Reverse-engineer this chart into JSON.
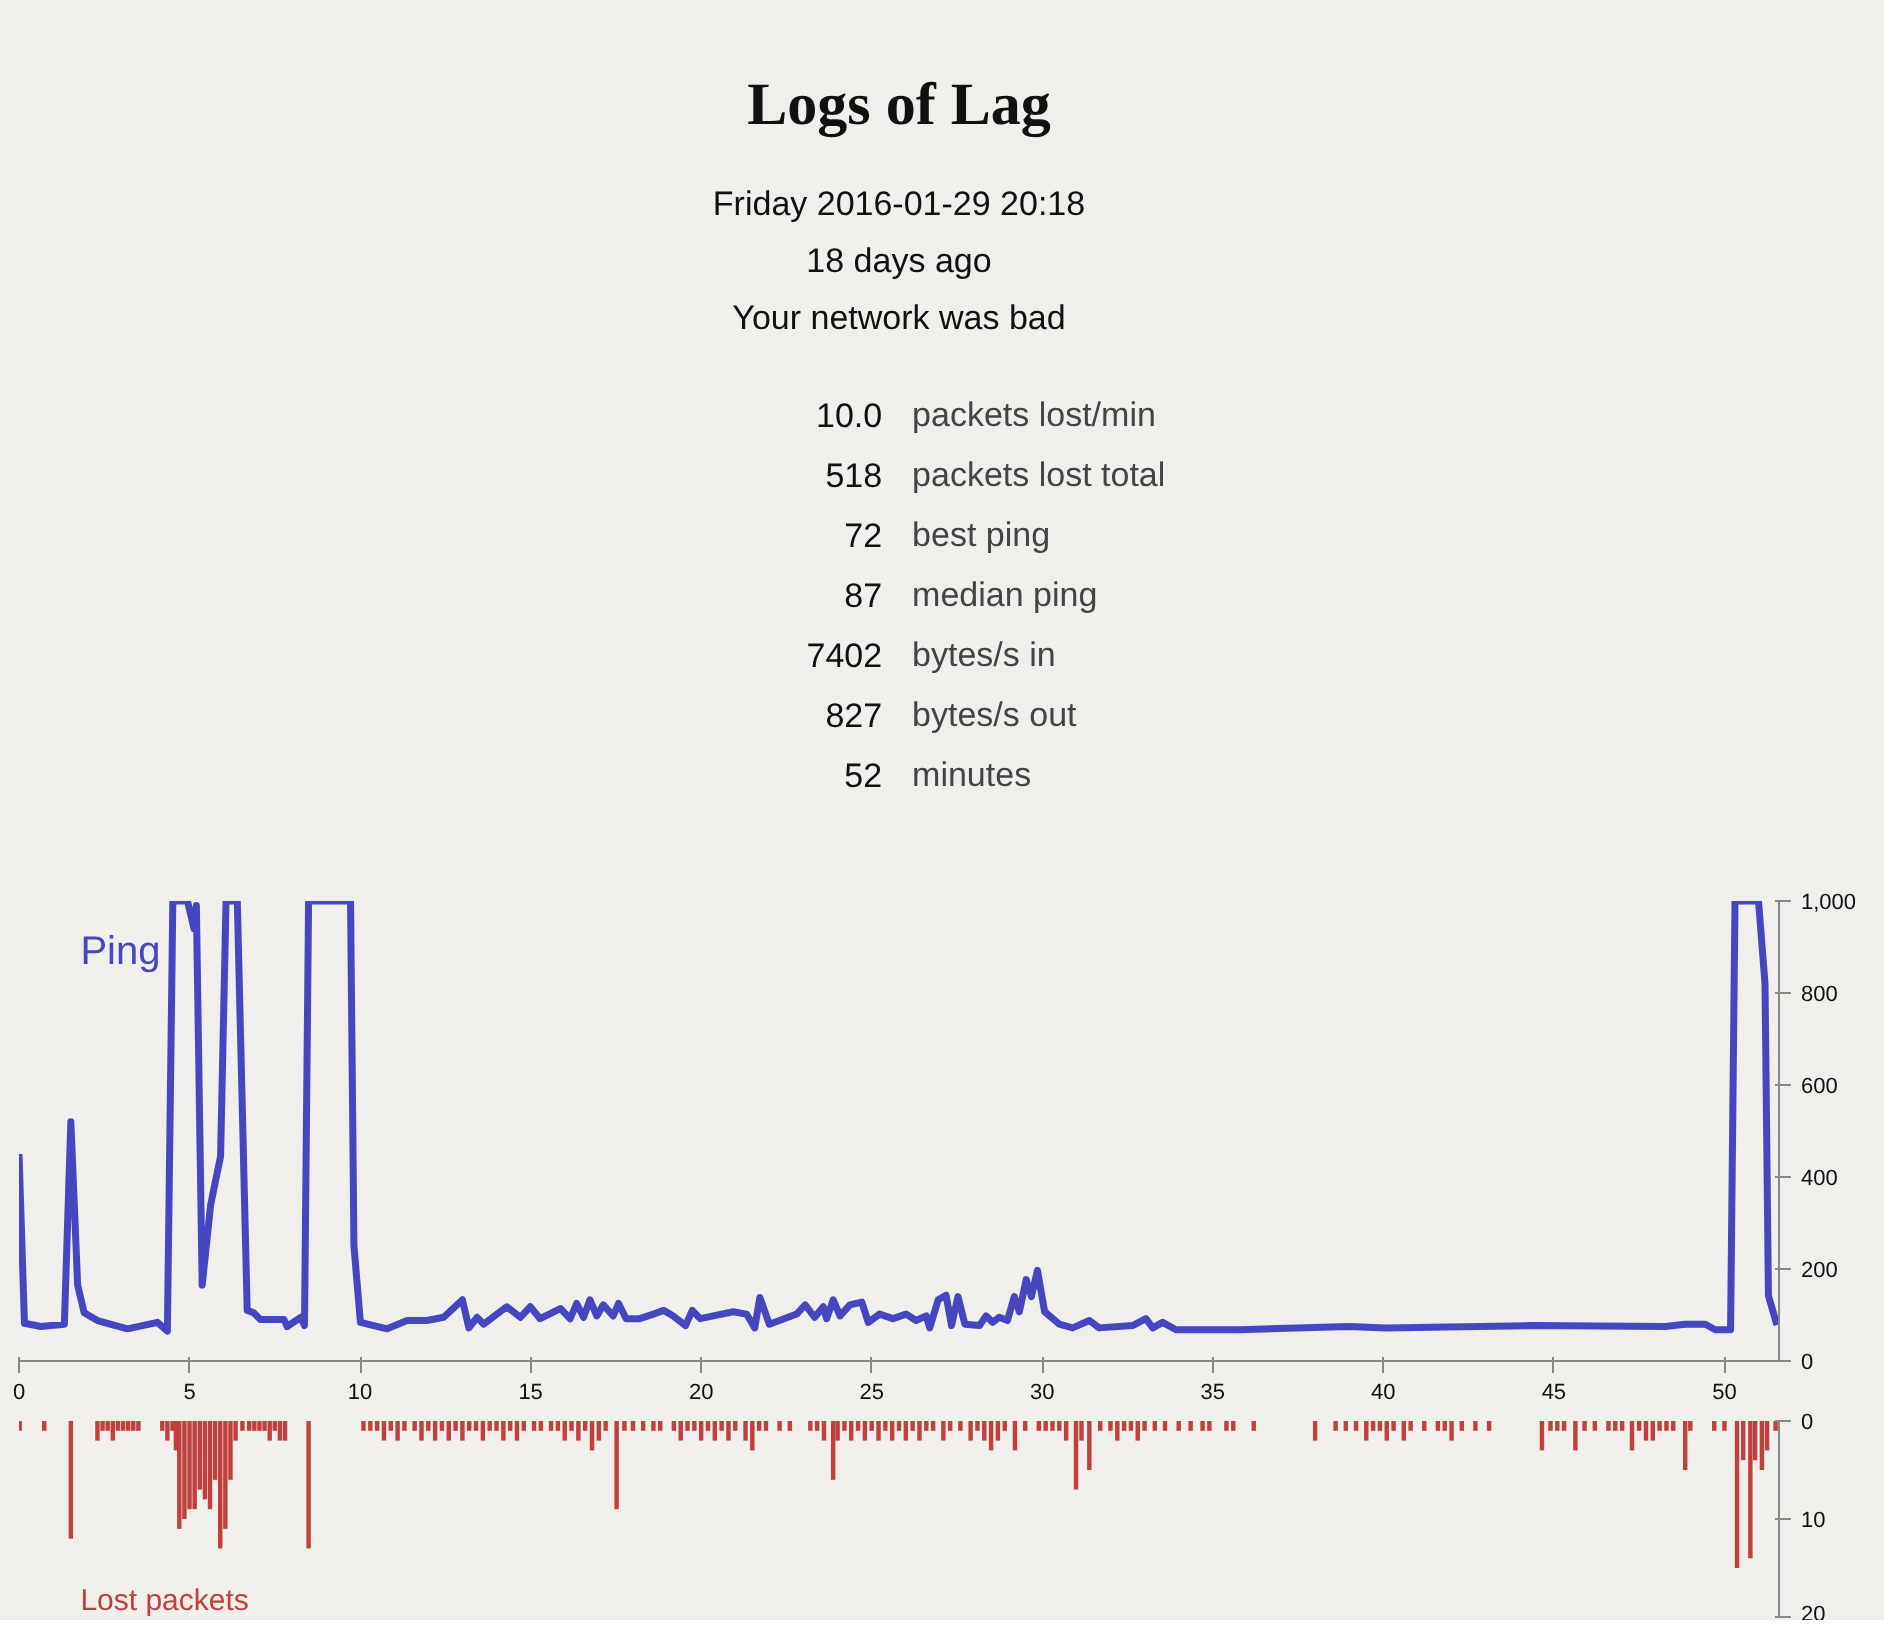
{
  "chart_data": [
    {
      "type": "other",
      "title": "Logs of Lag",
      "subtitle": "Friday 2016-01-29 20:18\n18 days ago\nYour network was bad",
      "annotations": [
        "10.0 packets lost/min",
        "518 packets lost total",
        "72 best ping",
        "87 median ping",
        "7402 bytes/s in",
        "827 bytes/s out",
        "52 minutes"
      ]
    },
    {
      "type": "line",
      "x": [
        0,
        0.16,
        0.64,
        1.33,
        1.52,
        1.72,
        1.91,
        2.3,
        3.18,
        4.06,
        4.35,
        4.51,
        4.94,
        5.13,
        5.2,
        5.37,
        5.62,
        5.91,
        6.07,
        6.4,
        6.69,
        6.88,
        7.08,
        7.77,
        7.86,
        8.26,
        8.37,
        8.49,
        9.72,
        9.82,
        10.01,
        10.79,
        11.38,
        11.96,
        12.45,
        13.0,
        13.19,
        13.43,
        13.62,
        14.3,
        14.7,
        14.99,
        15.28,
        15.87,
        16.16,
        16.35,
        16.55,
        16.74,
        16.94,
        17.13,
        17.42,
        17.58,
        17.8,
        18.2,
        18.6,
        18.9,
        19.18,
        19.54,
        19.74,
        19.97,
        20.36,
        20.94,
        21.33,
        21.57,
        21.72,
        22.0,
        22.8,
        23.05,
        23.33,
        23.58,
        23.68,
        23.87,
        24.07,
        24.36,
        24.71,
        24.9,
        25.23,
        25.62,
        26.01,
        26.3,
        26.6,
        26.7,
        26.95,
        27.18,
        27.34,
        27.53,
        27.73,
        28.16,
        28.35,
        28.55,
        28.74,
        28.98,
        29.18,
        29.33,
        29.53,
        29.68,
        29.86,
        30.07,
        30.5,
        30.89,
        31.38,
        31.67,
        32.65,
        33.04,
        33.24,
        33.53,
        33.92,
        35.77,
        38.99,
        40.07,
        44.36,
        48.26,
        48.85,
        49.44,
        49.73,
        50.18,
        50.31,
        51.0,
        51.19,
        51.29,
        51.54
      ],
      "series": [
        {
          "name": "Ping",
          "color": "#4646c0",
          "values": [
            450,
            82,
            75,
            80,
            520,
            165,
            105,
            88,
            70,
            84,
            65,
            1000,
            1000,
            940,
            990,
            165,
            340,
            445,
            1000,
            1000,
            110,
            105,
            90,
            90,
            75,
            95,
            77,
            1000,
            1000,
            250,
            84,
            70,
            88,
            88,
            95,
            133,
            72,
            95,
            80,
            118,
            95,
            118,
            92,
            114,
            92,
            125,
            95,
            133,
            98,
            122,
            98,
            125,
            92,
            92,
            102,
            110,
            98,
            77,
            110,
            92,
            98,
            107,
            102,
            72,
            138,
            80,
            102,
            122,
            95,
            118,
            92,
            133,
            98,
            122,
            128,
            84,
            102,
            92,
            102,
            88,
            98,
            72,
            133,
            143,
            77,
            140,
            80,
            77,
            98,
            84,
            95,
            88,
            140,
            107,
            177,
            140,
            197,
            107,
            80,
            72,
            88,
            72,
            77,
            92,
            72,
            84,
            68,
            68,
            75,
            72,
            77,
            75,
            80,
            80,
            68,
            68,
            1000,
            1000,
            820,
            142,
            78
          ]
        }
      ],
      "xlim": [
        0,
        51.6
      ],
      "xticks": [
        0,
        5,
        10,
        15,
        20,
        25,
        30,
        35,
        40,
        45,
        50
      ],
      "ylim": [
        0,
        1000
      ],
      "yticks": [
        0,
        200,
        400,
        600,
        800,
        {
          "value": 1000,
          "label": "1,000"
        }
      ],
      "grid": false,
      "legend": false,
      "marker": "none",
      "line_style": "solid"
    },
    {
      "type": "bar",
      "x": [
        0.02,
        0.74,
        1.52,
        2.3,
        2.45,
        2.6,
        2.75,
        2.9,
        3.05,
        3.2,
        3.35,
        3.5,
        4.2,
        4.35,
        4.5,
        4.6,
        4.7,
        4.85,
        5.0,
        5.15,
        5.3,
        5.45,
        5.6,
        5.75,
        5.9,
        6.05,
        6.2,
        6.35,
        6.55,
        6.75,
        6.9,
        7.05,
        7.2,
        7.35,
        7.5,
        7.65,
        7.8,
        8.49,
        10.1,
        10.3,
        10.5,
        10.7,
        10.9,
        11.1,
        11.3,
        11.6,
        11.8,
        12.0,
        12.2,
        12.4,
        12.6,
        12.8,
        13.0,
        13.2,
        13.4,
        13.6,
        13.8,
        14.0,
        14.2,
        14.4,
        14.6,
        14.8,
        15.1,
        15.3,
        15.6,
        15.8,
        16.0,
        16.2,
        16.4,
        16.6,
        16.8,
        17.0,
        17.2,
        17.52,
        17.75,
        18.0,
        18.3,
        18.6,
        18.8,
        19.2,
        19.4,
        19.6,
        19.8,
        20.0,
        20.2,
        20.4,
        20.6,
        20.8,
        21.0,
        21.3,
        21.5,
        21.7,
        21.9,
        22.3,
        22.6,
        23.2,
        23.4,
        23.6,
        23.87,
        24.0,
        24.2,
        24.4,
        24.6,
        24.8,
        25.0,
        25.2,
        25.4,
        25.6,
        25.8,
        26.0,
        26.2,
        26.4,
        26.6,
        26.8,
        27.1,
        27.3,
        27.6,
        27.9,
        28.1,
        28.3,
        28.5,
        28.7,
        28.9,
        29.2,
        29.5,
        29.9,
        30.1,
        30.3,
        30.5,
        30.7,
        30.99,
        31.15,
        31.38,
        31.7,
        32.0,
        32.2,
        32.4,
        32.6,
        32.8,
        33.0,
        33.3,
        33.6,
        34.0,
        34.35,
        34.7,
        34.9,
        35.4,
        35.6,
        36.2,
        38.0,
        38.6,
        38.9,
        39.2,
        39.5,
        39.7,
        39.9,
        40.1,
        40.3,
        40.6,
        40.8,
        41.2,
        41.6,
        41.8,
        42.0,
        42.3,
        42.7,
        43.1,
        44.65,
        44.9,
        45.1,
        45.3,
        45.63,
        45.9,
        46.2,
        46.6,
        46.8,
        47.0,
        47.29,
        47.5,
        47.7,
        47.9,
        48.1,
        48.3,
        48.5,
        48.85,
        49.0,
        49.7,
        50.0,
        50.37,
        50.55,
        50.76,
        50.9,
        51.1,
        51.25,
        51.5
      ],
      "series": [
        {
          "name": "Lost packets",
          "color": "#c0403e",
          "values": [
            1,
            1,
            12,
            2,
            1,
            1,
            2,
            1,
            1,
            1,
            1,
            1,
            1,
            2,
            1,
            3,
            11,
            10,
            9,
            9,
            7,
            8,
            9,
            6,
            13,
            11,
            6,
            2,
            1,
            1,
            1,
            1,
            1,
            2,
            1,
            2,
            2,
            13,
            1,
            1,
            1,
            2,
            1,
            2,
            1,
            1,
            2,
            1,
            2,
            1,
            2,
            1,
            2,
            1,
            1,
            2,
            1,
            1,
            2,
            1,
            2,
            1,
            1,
            1,
            1,
            1,
            2,
            1,
            2,
            1,
            3,
            2,
            1,
            9,
            1,
            1,
            1,
            1,
            1,
            1,
            2,
            1,
            1,
            2,
            1,
            2,
            1,
            2,
            1,
            2,
            3,
            1,
            1,
            1,
            1,
            1,
            1,
            2,
            6,
            2,
            1,
            2,
            1,
            2,
            1,
            2,
            1,
            2,
            1,
            2,
            1,
            2,
            1,
            1,
            2,
            1,
            1,
            2,
            1,
            2,
            3,
            2,
            1,
            3,
            1,
            1,
            1,
            1,
            1,
            2,
            7,
            2,
            5,
            1,
            1,
            2,
            1,
            1,
            2,
            1,
            1,
            1,
            1,
            1,
            1,
            1,
            1,
            1,
            1,
            2,
            1,
            1,
            1,
            2,
            1,
            1,
            2,
            1,
            2,
            1,
            1,
            1,
            1,
            2,
            1,
            1,
            1,
            3,
            1,
            1,
            1,
            3,
            1,
            1,
            1,
            1,
            1,
            3,
            1,
            2,
            2,
            1,
            1,
            1,
            5,
            1,
            1,
            1,
            15,
            4,
            14,
            4,
            5,
            3,
            1
          ]
        }
      ],
      "xlim": [
        0,
        51.6
      ],
      "ylim": [
        20,
        0
      ],
      "yticks": [
        0,
        10,
        20
      ],
      "tick_labels": "y",
      "grid": false,
      "legend": false
    }
  ]
}
